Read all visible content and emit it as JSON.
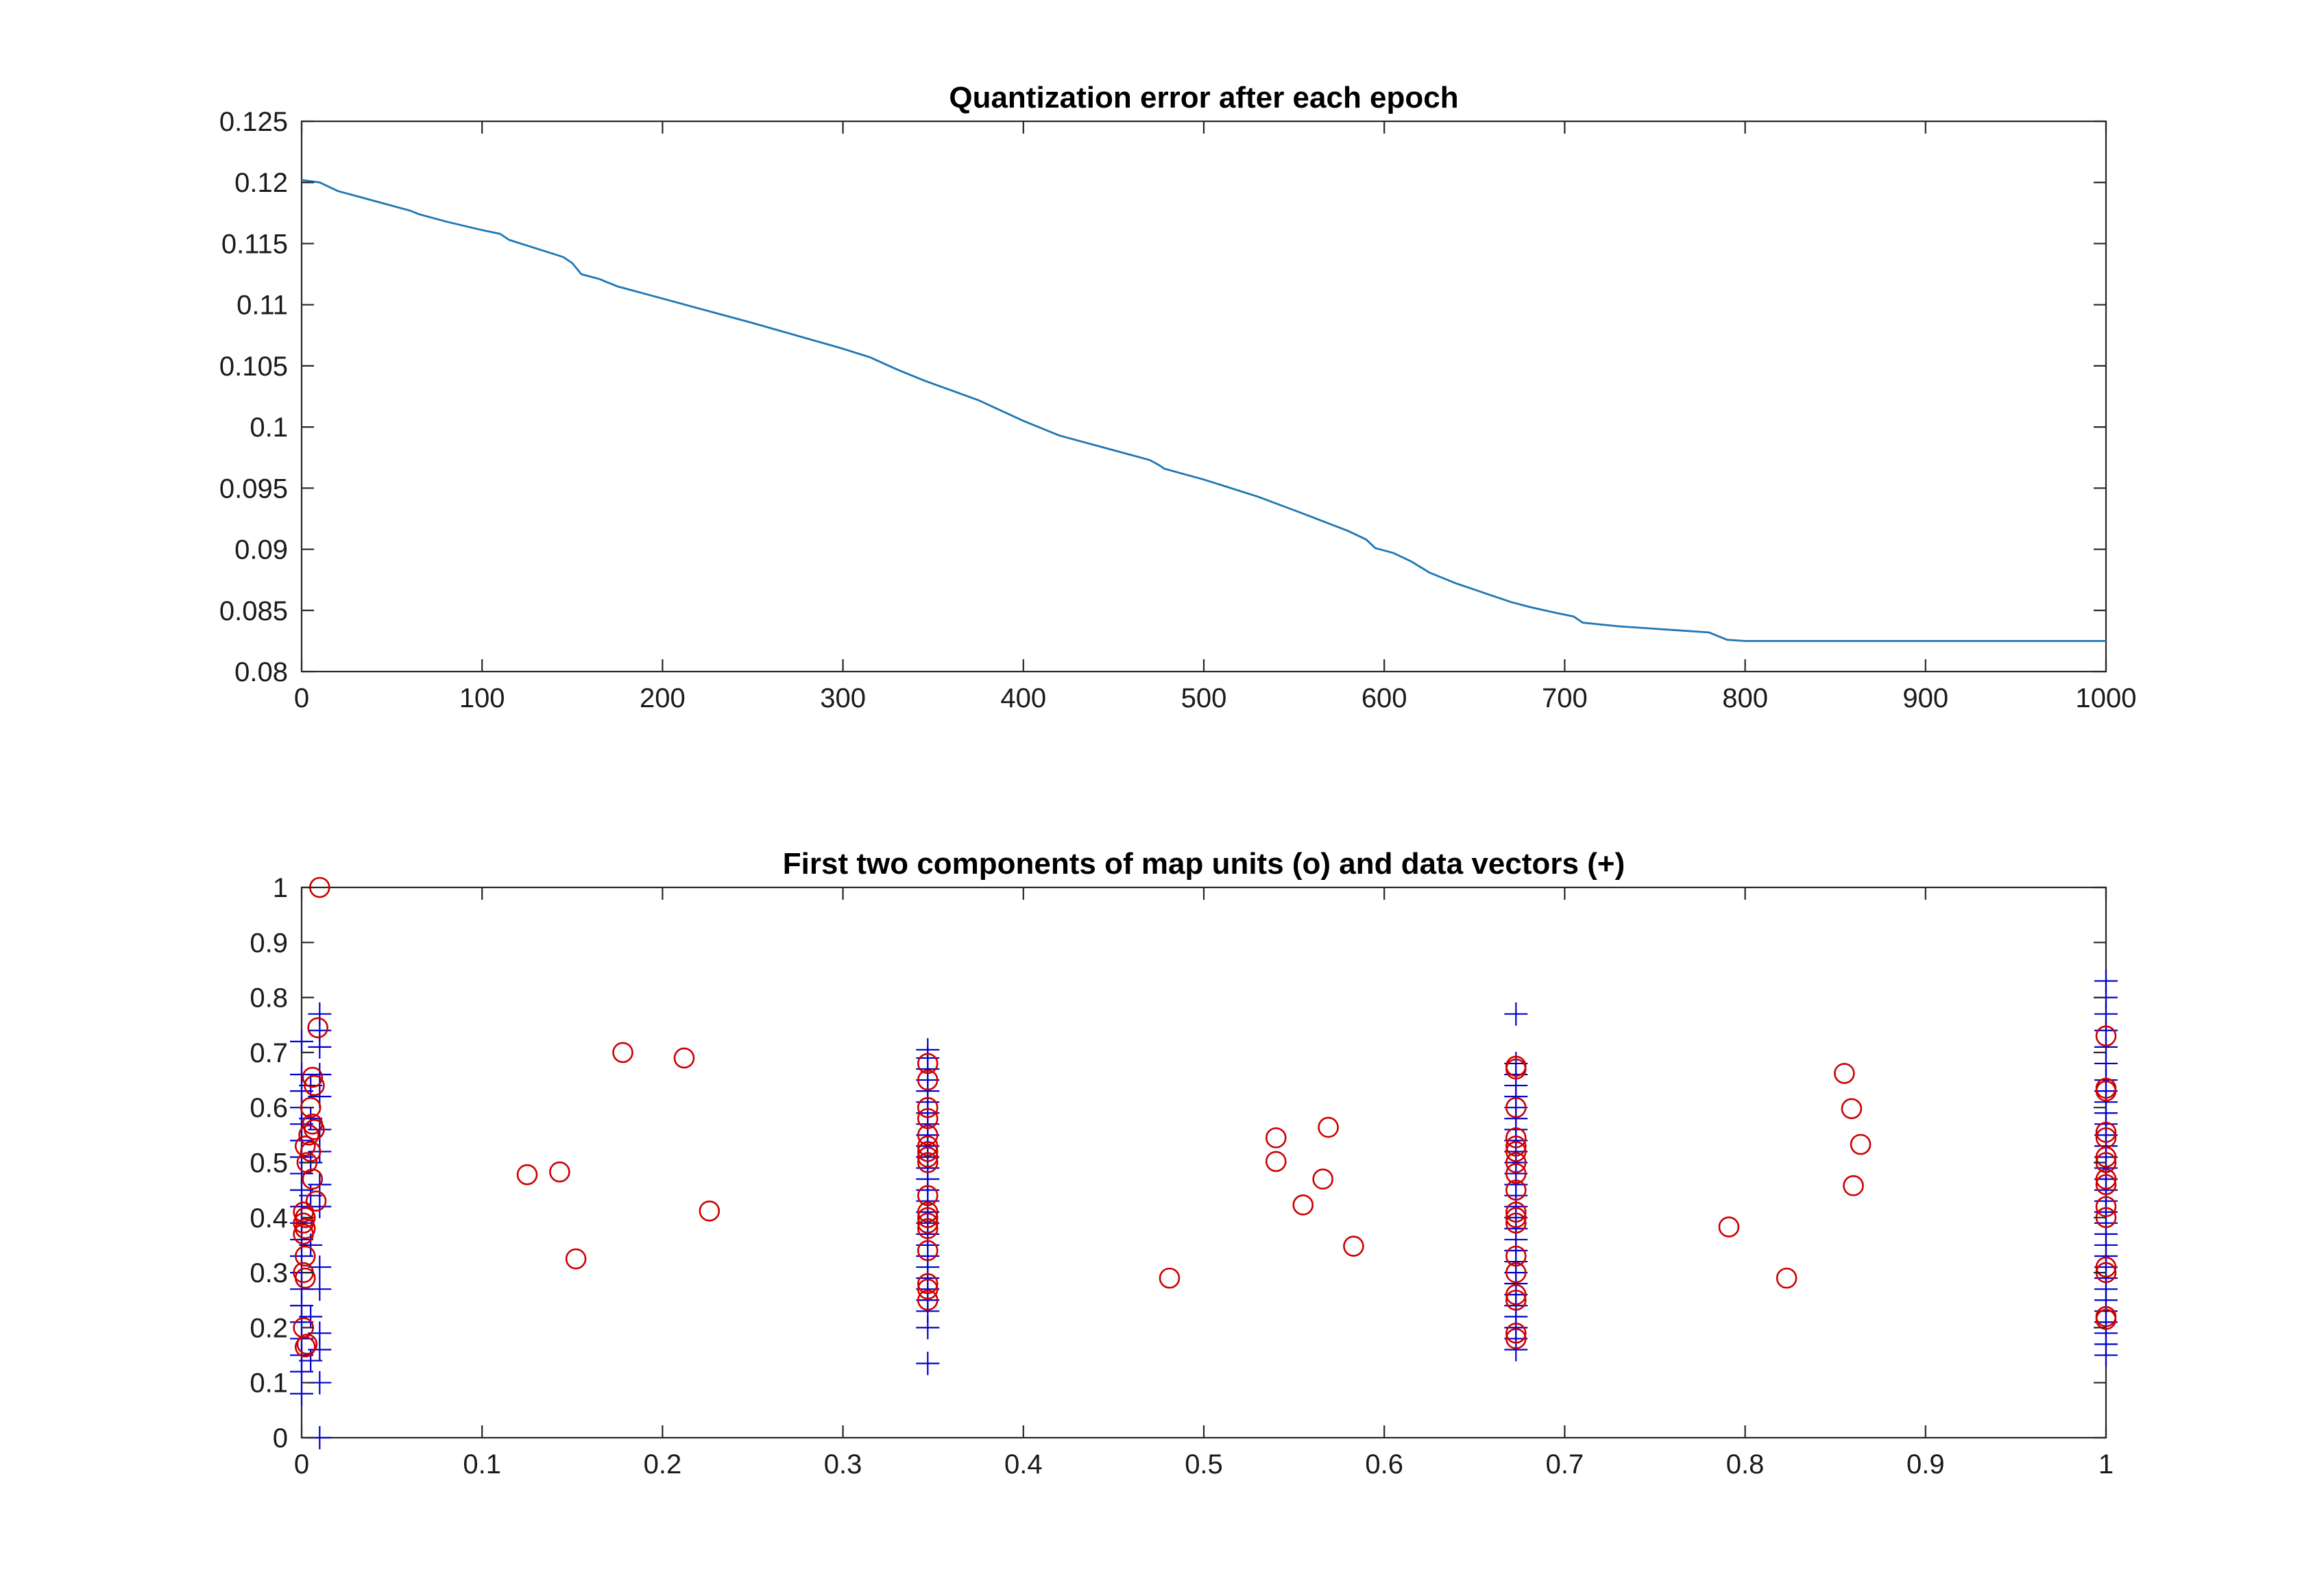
{
  "chart_data": [
    {
      "type": "line",
      "title": "Quantization error after each epoch",
      "xlabel": "",
      "ylabel": "",
      "xlim": [
        0,
        1000
      ],
      "ylim": [
        0.08,
        0.125
      ],
      "xticks": [
        0,
        100,
        200,
        300,
        400,
        500,
        600,
        700,
        800,
        900,
        1000
      ],
      "xtick_labels": [
        "0",
        "100",
        "200",
        "300",
        "400",
        "500",
        "600",
        "700",
        "800",
        "900",
        "1000"
      ],
      "yticks": [
        0.08,
        0.085,
        0.09,
        0.095,
        0.1,
        0.105,
        0.11,
        0.115,
        0.12,
        0.125
      ],
      "ytick_labels": [
        "0.08",
        "0.085",
        "0.09",
        "0.095",
        "0.1",
        "0.105",
        "0.11",
        "0.115",
        "0.12",
        "0.125"
      ],
      "grid": false,
      "series": [
        {
          "color": "#1f77b4",
          "x": [
            0,
            10,
            20,
            40,
            60,
            65,
            80,
            100,
            110,
            115,
            130,
            145,
            150,
            155,
            165,
            175,
            200,
            250,
            300,
            315,
            330,
            345,
            375,
            400,
            420,
            450,
            470,
            475,
            478,
            500,
            530,
            550,
            580,
            590,
            595,
            605,
            615,
            625,
            640,
            660,
            670,
            680,
            695,
            705,
            710,
            730,
            760,
            780,
            785,
            790,
            800,
            900,
            1000
          ],
          "y": [
            0.1202,
            0.12,
            0.1193,
            0.1185,
            0.1177,
            0.1174,
            0.1168,
            0.1161,
            0.1158,
            0.1153,
            0.1146,
            0.1139,
            0.1134,
            0.1125,
            0.1121,
            0.1115,
            0.1105,
            0.1085,
            0.1064,
            0.1057,
            0.1047,
            0.1038,
            0.1022,
            0.1005,
            0.0993,
            0.0981,
            0.0973,
            0.0969,
            0.0966,
            0.0957,
            0.0943,
            0.0932,
            0.0915,
            0.0908,
            0.0901,
            0.0897,
            0.089,
            0.0881,
            0.0872,
            0.0862,
            0.0857,
            0.0853,
            0.0848,
            0.0845,
            0.084,
            0.0837,
            0.0834,
            0.0832,
            0.0829,
            0.0826,
            0.0825,
            0.0825,
            0.0825
          ]
        }
      ]
    },
    {
      "type": "scatter",
      "title": "First two components of map units (o) and data vectors (+)",
      "xlabel": "",
      "ylabel": "",
      "xlim": [
        0,
        1
      ],
      "ylim": [
        0,
        1
      ],
      "xticks": [
        0,
        0.1,
        0.2,
        0.3,
        0.4,
        0.5,
        0.6,
        0.7,
        0.8,
        0.9,
        1
      ],
      "xtick_labels": [
        "0",
        "0.1",
        "0.2",
        "0.3",
        "0.4",
        "0.5",
        "0.6",
        "0.7",
        "0.8",
        "0.9",
        "1"
      ],
      "yticks": [
        0,
        0.1,
        0.2,
        0.3,
        0.4,
        0.5,
        0.6,
        0.7,
        0.8,
        0.9,
        1
      ],
      "ytick_labels": [
        "0",
        "0.1",
        "0.2",
        "0.3",
        "0.4",
        "0.5",
        "0.6",
        "0.7",
        "0.8",
        "0.9",
        "1"
      ],
      "grid": false,
      "series": [
        {
          "marker": "+",
          "color": "#0000cc",
          "points": [
            [
              0,
              0.08
            ],
            [
              0,
              0.12
            ],
            [
              0,
              0.15
            ],
            [
              0,
              0.18
            ],
            [
              0,
              0.21
            ],
            [
              0,
              0.24
            ],
            [
              0,
              0.27
            ],
            [
              0,
              0.3
            ],
            [
              0,
              0.33
            ],
            [
              0,
              0.36
            ],
            [
              0,
              0.39
            ],
            [
              0,
              0.42
            ],
            [
              0,
              0.45
            ],
            [
              0,
              0.48
            ],
            [
              0,
              0.51
            ],
            [
              0,
              0.54
            ],
            [
              0,
              0.57
            ],
            [
              0,
              0.6
            ],
            [
              0,
              0.63
            ],
            [
              0,
              0.66
            ],
            [
              0,
              0.72
            ],
            [
              0.005,
              0.14
            ],
            [
              0.005,
              0.22
            ],
            [
              0.005,
              0.35
            ],
            [
              0.005,
              0.44
            ],
            [
              0.005,
              0.5
            ],
            [
              0.005,
              0.58
            ],
            [
              0.005,
              0.64
            ],
            [
              0.01,
              0.0
            ],
            [
              0.01,
              0.1
            ],
            [
              0.01,
              0.16
            ],
            [
              0.01,
              0.19
            ],
            [
              0.01,
              0.27
            ],
            [
              0.01,
              0.31
            ],
            [
              0.01,
              0.42
            ],
            [
              0.01,
              0.46
            ],
            [
              0.01,
              0.52
            ],
            [
              0.01,
              0.56
            ],
            [
              0.01,
              0.62
            ],
            [
              0.01,
              0.66
            ],
            [
              0.01,
              0.71
            ],
            [
              0.01,
              0.74
            ],
            [
              0.01,
              0.77
            ],
            [
              0.347,
              0.135
            ],
            [
              0.347,
              0.2
            ],
            [
              0.347,
              0.23
            ],
            [
              0.347,
              0.25
            ],
            [
              0.347,
              0.27
            ],
            [
              0.347,
              0.29
            ],
            [
              0.347,
              0.31
            ],
            [
              0.347,
              0.33
            ],
            [
              0.347,
              0.35
            ],
            [
              0.347,
              0.37
            ],
            [
              0.347,
              0.39
            ],
            [
              0.347,
              0.41
            ],
            [
              0.347,
              0.43
            ],
            [
              0.347,
              0.45
            ],
            [
              0.347,
              0.47
            ],
            [
              0.347,
              0.49
            ],
            [
              0.347,
              0.51
            ],
            [
              0.347,
              0.53
            ],
            [
              0.347,
              0.55
            ],
            [
              0.347,
              0.57
            ],
            [
              0.347,
              0.59
            ],
            [
              0.347,
              0.61
            ],
            [
              0.347,
              0.63
            ],
            [
              0.347,
              0.65
            ],
            [
              0.347,
              0.67
            ],
            [
              0.347,
              0.69
            ],
            [
              0.347,
              0.705
            ],
            [
              0.673,
              0.16
            ],
            [
              0.673,
              0.18
            ],
            [
              0.673,
              0.2
            ],
            [
              0.673,
              0.22
            ],
            [
              0.673,
              0.24
            ],
            [
              0.673,
              0.26
            ],
            [
              0.673,
              0.28
            ],
            [
              0.673,
              0.3
            ],
            [
              0.673,
              0.32
            ],
            [
              0.673,
              0.34
            ],
            [
              0.673,
              0.36
            ],
            [
              0.673,
              0.38
            ],
            [
              0.673,
              0.4
            ],
            [
              0.673,
              0.42
            ],
            [
              0.673,
              0.44
            ],
            [
              0.673,
              0.46
            ],
            [
              0.673,
              0.48
            ],
            [
              0.673,
              0.5
            ],
            [
              0.673,
              0.52
            ],
            [
              0.673,
              0.54
            ],
            [
              0.673,
              0.56
            ],
            [
              0.673,
              0.58
            ],
            [
              0.673,
              0.6
            ],
            [
              0.673,
              0.62
            ],
            [
              0.673,
              0.64
            ],
            [
              0.673,
              0.66
            ],
            [
              0.673,
              0.68
            ],
            [
              0.673,
              0.77
            ],
            [
              1,
              0.15
            ],
            [
              1,
              0.17
            ],
            [
              1,
              0.19
            ],
            [
              1,
              0.21
            ],
            [
              1,
              0.23
            ],
            [
              1,
              0.25
            ],
            [
              1,
              0.27
            ],
            [
              1,
              0.29
            ],
            [
              1,
              0.31
            ],
            [
              1,
              0.33
            ],
            [
              1,
              0.35
            ],
            [
              1,
              0.37
            ],
            [
              1,
              0.39
            ],
            [
              1,
              0.41
            ],
            [
              1,
              0.43
            ],
            [
              1,
              0.45
            ],
            [
              1,
              0.47
            ],
            [
              1,
              0.49
            ],
            [
              1,
              0.51
            ],
            [
              1,
              0.53
            ],
            [
              1,
              0.55
            ],
            [
              1,
              0.57
            ],
            [
              1,
              0.59
            ],
            [
              1,
              0.61
            ],
            [
              1,
              0.63
            ],
            [
              1,
              0.65
            ],
            [
              1,
              0.68
            ],
            [
              1,
              0.71
            ],
            [
              1,
              0.74
            ],
            [
              1,
              0.77
            ],
            [
              1,
              0.8
            ],
            [
              1,
              0.83
            ]
          ]
        },
        {
          "marker": "o",
          "color": "#cc0000",
          "points": [
            [
              0.01,
              1.0
            ],
            [
              0.009,
              0.745
            ],
            [
              0.006,
              0.655
            ],
            [
              0.007,
              0.64
            ],
            [
              0.005,
              0.6
            ],
            [
              0.006,
              0.57
            ],
            [
              0.007,
              0.56
            ],
            [
              0.004,
              0.55
            ],
            [
              0.002,
              0.53
            ],
            [
              0.005,
              0.52
            ],
            [
              0.003,
              0.5
            ],
            [
              0.006,
              0.47
            ],
            [
              0.008,
              0.43
            ],
            [
              0.001,
              0.41
            ],
            [
              0.002,
              0.4
            ],
            [
              0.001,
              0.39
            ],
            [
              0.002,
              0.38
            ],
            [
              0.001,
              0.37
            ],
            [
              0.002,
              0.33
            ],
            [
              0.001,
              0.3
            ],
            [
              0.002,
              0.29
            ],
            [
              0.001,
              0.2
            ],
            [
              0.003,
              0.17
            ],
            [
              0.002,
              0.165
            ],
            [
              0.125,
              0.478
            ],
            [
              0.143,
              0.483
            ],
            [
              0.152,
              0.325
            ],
            [
              0.178,
              0.7
            ],
            [
              0.212,
              0.69
            ],
            [
              0.226,
              0.412
            ],
            [
              0.347,
              0.68
            ],
            [
              0.347,
              0.65
            ],
            [
              0.347,
              0.6
            ],
            [
              0.347,
              0.58
            ],
            [
              0.347,
              0.55
            ],
            [
              0.347,
              0.53
            ],
            [
              0.347,
              0.52
            ],
            [
              0.347,
              0.51
            ],
            [
              0.347,
              0.5
            ],
            [
              0.347,
              0.44
            ],
            [
              0.347,
              0.41
            ],
            [
              0.347,
              0.4
            ],
            [
              0.347,
              0.39
            ],
            [
              0.347,
              0.38
            ],
            [
              0.347,
              0.34
            ],
            [
              0.347,
              0.28
            ],
            [
              0.347,
              0.27
            ],
            [
              0.347,
              0.25
            ],
            [
              0.481,
              0.29
            ],
            [
              0.54,
              0.545
            ],
            [
              0.54,
              0.502
            ],
            [
              0.555,
              0.423
            ],
            [
              0.566,
              0.47
            ],
            [
              0.569,
              0.564
            ],
            [
              0.583,
              0.348
            ],
            [
              0.673,
              0.675
            ],
            [
              0.673,
              0.67
            ],
            [
              0.673,
              0.6
            ],
            [
              0.673,
              0.545
            ],
            [
              0.673,
              0.53
            ],
            [
              0.673,
              0.52
            ],
            [
              0.673,
              0.5
            ],
            [
              0.673,
              0.48
            ],
            [
              0.673,
              0.45
            ],
            [
              0.673,
              0.41
            ],
            [
              0.673,
              0.4
            ],
            [
              0.673,
              0.39
            ],
            [
              0.673,
              0.33
            ],
            [
              0.673,
              0.3
            ],
            [
              0.673,
              0.26
            ],
            [
              0.673,
              0.25
            ],
            [
              0.673,
              0.19
            ],
            [
              0.673,
              0.18
            ],
            [
              0.791,
              0.383
            ],
            [
              0.823,
              0.29
            ],
            [
              0.855,
              0.662
            ],
            [
              0.859,
              0.598
            ],
            [
              0.86,
              0.458
            ],
            [
              0.864,
              0.533
            ],
            [
              1,
              0.73
            ],
            [
              1,
              0.635
            ],
            [
              1,
              0.63
            ],
            [
              1,
              0.555
            ],
            [
              1,
              0.545
            ],
            [
              1,
              0.51
            ],
            [
              1,
              0.5
            ],
            [
              1,
              0.47
            ],
            [
              1,
              0.46
            ],
            [
              1,
              0.42
            ],
            [
              1,
              0.4
            ],
            [
              1,
              0.31
            ],
            [
              1,
              0.3
            ],
            [
              1,
              0.22
            ],
            [
              1,
              0.215
            ]
          ]
        }
      ]
    }
  ]
}
